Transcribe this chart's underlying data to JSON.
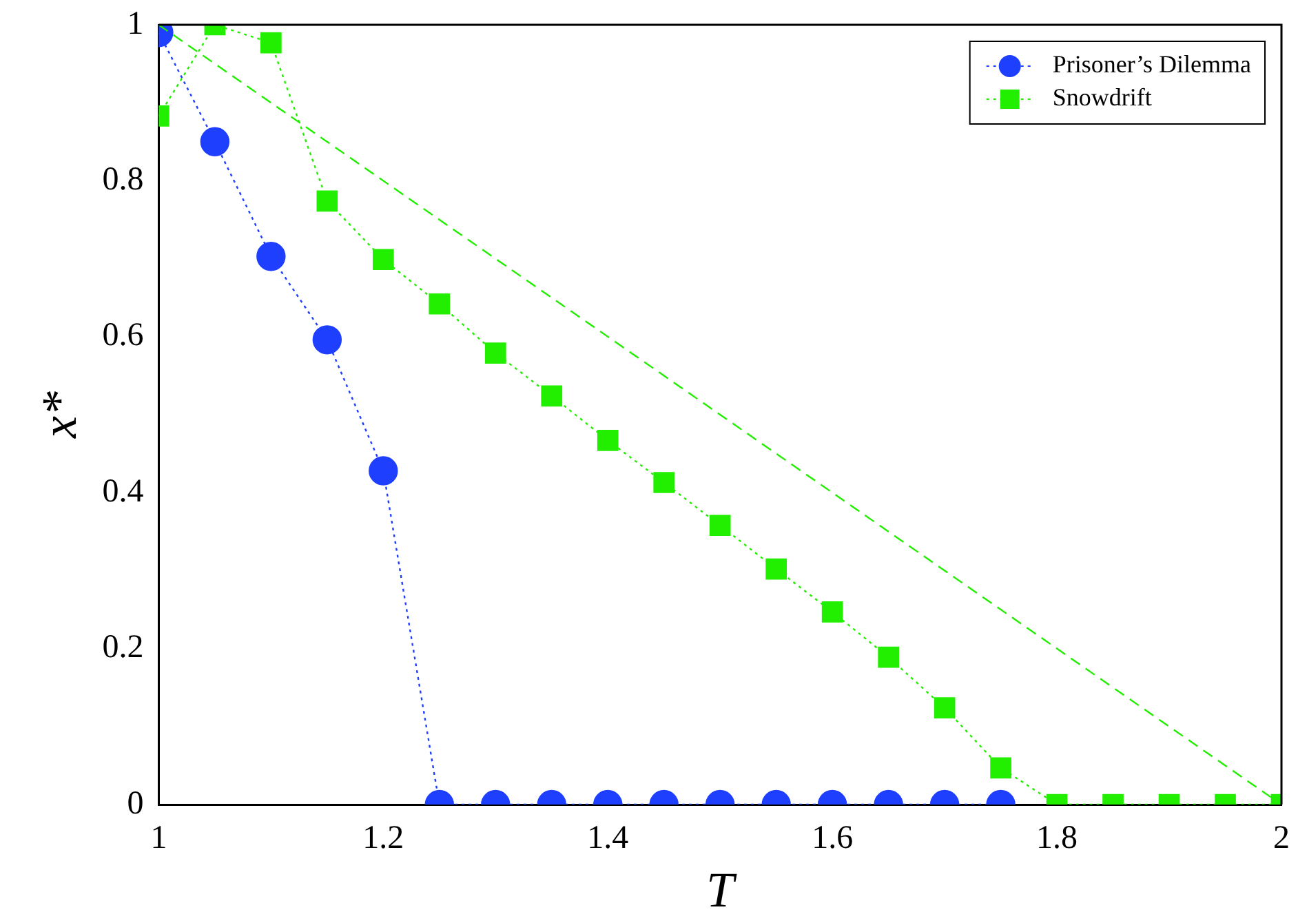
{
  "chart_data": {
    "type": "line",
    "xlabel": "T",
    "ylabel": "x*",
    "x": [
      1,
      1.05,
      1.1,
      1.15,
      1.2,
      1.25,
      1.3,
      1.35,
      1.4,
      1.45,
      1.5,
      1.55,
      1.6,
      1.65,
      1.7,
      1.75,
      1.8,
      1.85,
      1.9,
      1.95,
      2
    ],
    "xlim": [
      1,
      2
    ],
    "xticks": [
      1,
      1.2,
      1.4,
      1.6,
      1.8,
      2
    ],
    "ylim": [
      0,
      1
    ],
    "yticks": [
      0,
      0.2,
      0.4,
      0.6,
      0.8,
      1
    ],
    "grid": false,
    "legend": "top right",
    "series": [
      {
        "name": "Prisoner’s Dilemma",
        "color": "#1f3fff",
        "marker": "circle",
        "line_style": "dotted",
        "values": [
          0.99,
          0.85,
          0.703,
          0.596,
          0.428,
          0,
          0,
          0,
          0,
          0,
          0,
          0,
          0,
          0,
          0,
          0,
          null,
          null,
          null,
          null,
          null
        ]
      },
      {
        "name": "Snowdrift",
        "color": "#22ee00",
        "marker": "square",
        "line_style": "dotted",
        "values": [
          0.883,
          1.0,
          0.977,
          0.774,
          0.699,
          0.642,
          0.579,
          0.524,
          0.467,
          0.413,
          0.358,
          0.302,
          0.247,
          0.189,
          0.124,
          0.047,
          0,
          0,
          0,
          0,
          0
        ]
      },
      {
        "color": "#22ee00",
        "marker": "none",
        "line_style": "dashed",
        "x": [
          1,
          2
        ],
        "values": [
          1,
          0
        ]
      }
    ]
  }
}
